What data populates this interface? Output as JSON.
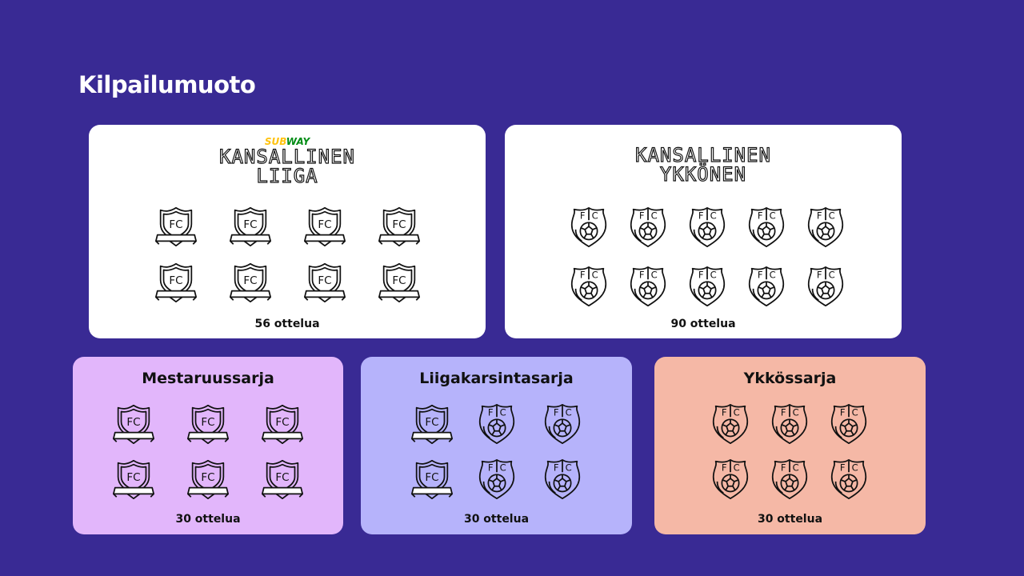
{
  "title": "Kilpailumuoto",
  "cards": {
    "liiga": {
      "sponsor": "SUBWAY",
      "sponsor_colors": [
        "#ffc20e",
        "#008c15"
      ],
      "logo_line1": "KANSALLINEN",
      "logo_line2": "LIIGA",
      "count": "56 ottelua",
      "icons": [
        "shield",
        "shield",
        "shield",
        "shield",
        "shield",
        "shield",
        "shield",
        "shield"
      ],
      "bg": "#ffffff"
    },
    "ykkonen": {
      "logo_line1": "KANSALLINEN",
      "logo_line2": "YKKÖNEN",
      "count": "90 ottelua",
      "icons": [
        "crest",
        "crest",
        "crest",
        "crest",
        "crest",
        "crest",
        "crest",
        "crest",
        "crest",
        "crest"
      ],
      "bg": "#ffffff"
    },
    "mestaruussarja": {
      "heading": "Mestaruussarja",
      "count": "30 ottelua",
      "icons": [
        "shield",
        "shield",
        "shield",
        "shield",
        "shield",
        "shield"
      ],
      "bg": "#e2b6fb"
    },
    "liigakarsinta": {
      "heading": "Liigakarsintasarja",
      "count": "30 ottelua",
      "icons": [
        "shield",
        "crest",
        "crest",
        "shield",
        "crest",
        "crest"
      ],
      "bg": "#b6b3fb"
    },
    "ykkossarja": {
      "heading": "Ykkössarja",
      "count": "30 ottelua",
      "icons": [
        "crest",
        "crest",
        "crest",
        "crest",
        "crest",
        "crest"
      ],
      "bg": "#f5b8a6"
    }
  }
}
